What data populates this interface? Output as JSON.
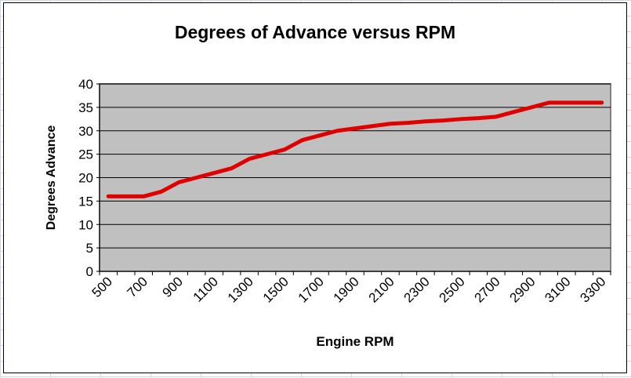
{
  "chart_data": {
    "type": "line",
    "title": "Degrees of Advance versus RPM",
    "xlabel": "Engine RPM",
    "ylabel": "Degrees Advance",
    "categories": [
      500,
      600,
      700,
      800,
      900,
      1000,
      1100,
      1200,
      1300,
      1400,
      1500,
      1600,
      1700,
      1800,
      1900,
      2000,
      2100,
      2200,
      2300,
      2400,
      2500,
      2600,
      2700,
      2800,
      2900,
      3000,
      3100,
      3200,
      3300
    ],
    "x_tick_labels": [
      "500",
      "700",
      "900",
      "1100",
      "1300",
      "1500",
      "1700",
      "1900",
      "2100",
      "2300",
      "2500",
      "2700",
      "2900",
      "3100",
      "3300"
    ],
    "y_tick_labels": [
      "0",
      "5",
      "10",
      "15",
      "20",
      "25",
      "30",
      "35",
      "40"
    ],
    "series": [
      {
        "values": [
          16,
          16,
          16,
          17,
          19,
          20,
          21,
          22,
          24,
          25,
          26,
          28,
          29,
          30,
          30.5,
          31,
          31.5,
          31.7,
          32,
          32.2,
          32.5,
          32.7,
          33,
          34,
          35,
          36,
          36,
          36,
          36
        ],
        "color": "#e00000"
      }
    ],
    "ylim": [
      0,
      40
    ],
    "grid": "horizontal major",
    "legend": "none",
    "plot_background": "#c0c0c0"
  }
}
